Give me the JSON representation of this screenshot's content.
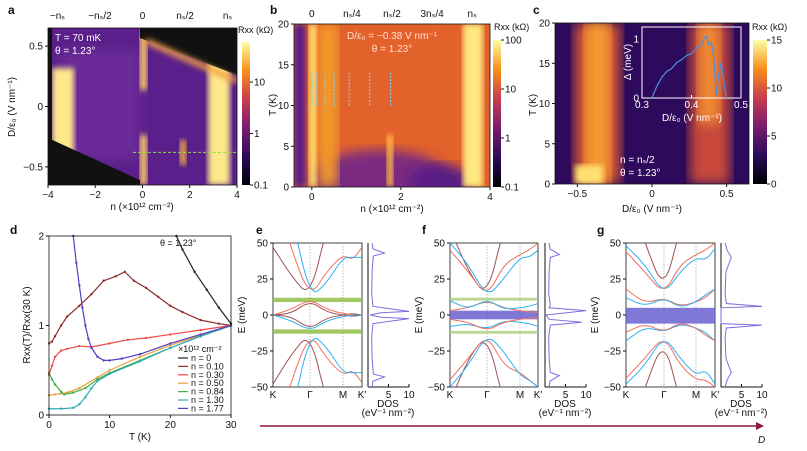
{
  "panels": {
    "a": "a",
    "b": "b",
    "c": "c",
    "d": "d",
    "e": "e",
    "f": "f",
    "g": "g"
  },
  "arrow_label": "D",
  "chart_data": [
    {
      "id": "a",
      "type": "heatmap",
      "xlabel": "n (×10¹² cm⁻²)",
      "ylabel": "D/ε₀ (V nm⁻¹)",
      "xlim": [
        -4,
        4
      ],
      "ylim": [
        -0.65,
        0.65
      ],
      "xticks": [
        -4,
        -2,
        0,
        2,
        4
      ],
      "yticks": [
        -0.5,
        0,
        0.5
      ],
      "top_ticks": [
        {
          "label": "−nₛ",
          "n": -3.6
        },
        {
          "label": "−nₛ/2",
          "n": -1.8
        },
        {
          "label": "0",
          "n": 0
        },
        {
          "label": "nₛ/2",
          "n": 1.8
        },
        {
          "label": "nₛ",
          "n": 3.6
        }
      ],
      "annotations": [
        "T = 70 mK",
        "θ = 1.23°"
      ],
      "colorbar": {
        "label": "Rxx (kΩ)",
        "scale": "log",
        "range": [
          0.1,
          60
        ],
        "ticks": [
          0.1,
          1,
          10
        ]
      },
      "cut_line": {
        "D": -0.38,
        "n_range": [
          -0.4,
          4
        ],
        "color": "#8fe33a"
      }
    },
    {
      "id": "b",
      "type": "heatmap",
      "xlabel": "n (×10¹² cm⁻²)",
      "ylabel": "T (K)",
      "xlim": [
        -0.4,
        4
      ],
      "ylim": [
        0,
        20
      ],
      "xticks": [
        0,
        2,
        4
      ],
      "yticks": [
        0,
        5,
        10,
        15,
        20
      ],
      "top_ticks": [
        {
          "label": "0",
          "n": 0
        },
        {
          "label": "nₛ/4",
          "n": 0.9
        },
        {
          "label": "nₛ/2",
          "n": 1.8
        },
        {
          "label": "3nₛ/4",
          "n": 2.7
        },
        {
          "label": "nₛ",
          "n": 3.6
        }
      ],
      "annotations": [
        "D/ε₀ = −0.38 V nm⁻¹",
        "θ = 1.23°"
      ],
      "colorbar": {
        "label": "Rxx (kΩ)",
        "scale": "log",
        "range": [
          0.1,
          100
        ],
        "ticks": [
          0.1,
          1,
          10,
          100
        ]
      },
      "marker_lines": {
        "n": [
          0,
          0.1,
          0.3,
          0.5,
          0.84,
          1.3,
          1.77
        ],
        "T_range": [
          10,
          14
        ],
        "color": "#6fd0ff"
      }
    },
    {
      "id": "c",
      "type": "heatmap",
      "xlabel": "D/ε₀ (V nm⁻¹)",
      "ylabel": "T (K)",
      "xlim": [
        -0.65,
        0.65
      ],
      "ylim": [
        0,
        20
      ],
      "xticks": [
        -0.5,
        0,
        0.5
      ],
      "yticks": [
        0,
        5,
        10,
        15,
        20
      ],
      "annotations": [
        "n = nₛ/2",
        "θ = 1.23°"
      ],
      "colorbar": {
        "label": "Rxx (kΩ)",
        "scale": "linear",
        "range": [
          0,
          15
        ],
        "ticks": [
          0,
          5,
          10,
          15
        ]
      },
      "inset": {
        "type": "line",
        "xlabel": "D/ε₀ (V nm⁻¹)",
        "ylabel": "Δ (meV)",
        "xlim": [
          0.3,
          0.5
        ],
        "ylim": [
          0,
          1.2
        ],
        "xticks": [
          0.3,
          0.4,
          0.5
        ],
        "yticks": [
          0,
          1
        ],
        "color": "#4a90e2",
        "x": [
          0.32,
          0.33,
          0.34,
          0.35,
          0.36,
          0.37,
          0.38,
          0.39,
          0.4,
          0.41,
          0.42,
          0.425,
          0.43,
          0.435,
          0.44,
          0.445,
          0.45,
          0.455,
          0.46,
          0.465,
          0.47
        ],
        "y": [
          0,
          0.2,
          0.35,
          0.45,
          0.5,
          0.6,
          0.65,
          0.72,
          0.75,
          0.85,
          0.9,
          1.0,
          1.05,
          0.9,
          0.95,
          0.7,
          0.05,
          0.4,
          0.6,
          0.3,
          0
        ]
      }
    },
    {
      "id": "d",
      "type": "line",
      "xlabel": "T (K)",
      "ylabel": "Rxx(T)/Rxx(30 K)",
      "xlim": [
        0,
        30
      ],
      "ylim": [
        0,
        2
      ],
      "xticks": [
        0,
        10,
        20,
        30
      ],
      "yticks": [
        0,
        1,
        2
      ],
      "annotation": "θ = 1.23°",
      "legend_title": "×10¹² cm⁻²",
      "legend": "bottom-right",
      "series": [
        {
          "name": "n = 0",
          "color": "#222222",
          "x": [
            21,
            22,
            24,
            26,
            28,
            30
          ],
          "y": [
            2,
            1.85,
            1.6,
            1.4,
            1.2,
            1.02
          ]
        },
        {
          "name": "n = 0.10",
          "color": "#8b2e2e",
          "x": [
            0,
            0.5,
            1,
            2,
            3,
            5,
            7,
            9,
            11,
            12.5,
            14,
            16,
            18,
            20,
            22,
            25,
            28,
            30
          ],
          "y": [
            0.8,
            0.82,
            0.88,
            1.0,
            1.1,
            1.22,
            1.35,
            1.5,
            1.55,
            1.6,
            1.5,
            1.42,
            1.32,
            1.22,
            1.15,
            1.06,
            1.02,
            1.0
          ]
        },
        {
          "name": "n = 0.30",
          "color": "#f04848",
          "x": [
            0,
            0.5,
            1,
            2,
            3,
            5,
            7,
            10,
            13,
            16,
            20,
            25,
            30
          ],
          "y": [
            0.45,
            0.55,
            0.65,
            0.72,
            0.74,
            0.77,
            0.76,
            0.8,
            0.84,
            0.86,
            0.9,
            0.95,
            1.0
          ]
        },
        {
          "name": "n = 0.50",
          "color": "#e8a040",
          "x": [
            0,
            1,
            2,
            3,
            5,
            8,
            10,
            15,
            20,
            25,
            30
          ],
          "y": [
            0.22,
            0.23,
            0.24,
            0.25,
            0.3,
            0.42,
            0.5,
            0.65,
            0.78,
            0.89,
            1.0
          ]
        },
        {
          "name": "n = 0.84",
          "color": "#40b040",
          "x": [
            0,
            0.5,
            1,
            2,
            2.5,
            4,
            6,
            8,
            10,
            15,
            20,
            25,
            30
          ],
          "y": [
            0.47,
            0.4,
            0.34,
            0.26,
            0.23,
            0.25,
            0.3,
            0.4,
            0.47,
            0.61,
            0.75,
            0.88,
            1.0
          ]
        },
        {
          "name": "n = 1.30",
          "color": "#30a8b8",
          "x": [
            0,
            2,
            4,
            5,
            6,
            7,
            8,
            10,
            15,
            20,
            25,
            30
          ],
          "y": [
            0.07,
            0.07,
            0.08,
            0.12,
            0.2,
            0.3,
            0.38,
            0.46,
            0.6,
            0.75,
            0.88,
            1.0
          ]
        },
        {
          "name": "n = 1.77",
          "color": "#5040c0",
          "x": [
            4,
            4.5,
            5,
            5.5,
            6,
            6.5,
            7,
            8,
            9,
            10,
            12,
            15,
            20,
            25,
            30
          ],
          "y": [
            2,
            1.7,
            1.45,
            1.2,
            1.0,
            0.85,
            0.75,
            0.65,
            0.61,
            0.61,
            0.63,
            0.68,
            0.8,
            0.9,
            1.0
          ]
        }
      ]
    },
    {
      "id": "e",
      "type": "line",
      "ylabel": "E (meV)",
      "ylim": [
        -50,
        50
      ],
      "yticks": [
        -50,
        -25,
        0,
        25,
        50
      ],
      "kpath": [
        "K",
        "Γ",
        "M",
        "K′"
      ],
      "dos": {
        "xlabel": "DOS",
        "xunit": "(eV⁻¹ nm⁻²)",
        "xticks": [
          5,
          10
        ],
        "xlim": [
          0,
          10
        ],
        "E": [
          -50,
          -46,
          -43,
          -41,
          -30,
          -15,
          -6,
          -2.5,
          -1.5,
          0,
          1.5,
          2.5,
          6,
          15,
          30,
          41,
          43,
          46,
          50
        ],
        "dos": [
          1,
          1.2,
          4,
          1.3,
          1,
          0.9,
          1.2,
          10,
          3,
          0.5,
          3,
          10,
          1.2,
          0.9,
          1,
          1.3,
          4,
          1.2,
          1
        ]
      },
      "gap_bands": [
        {
          "E": [
            9,
            12
          ],
          "color": "#8fbf4a"
        },
        {
          "E": [
            -13,
            -10
          ],
          "color": "#8fbf4a"
        }
      ],
      "bands": [
        {
          "color": "#a05050",
          "E": [
            47,
            27,
            12,
            60,
            90,
            90,
            90
          ]
        },
        {
          "color": "#a05050",
          "E": [
            -48,
            -27,
            -12,
            -60,
            -90,
            -90,
            -90
          ]
        },
        {
          "color": "#a05050",
          "E": [
            0,
            1,
            10,
            2,
            0,
            -1,
            0
          ]
        },
        {
          "color": "#a05050",
          "E": [
            0,
            -1,
            -10,
            -2,
            0,
            1,
            0
          ]
        },
        {
          "color": "#f07060",
          "E": [
            90,
            45,
            12,
            30,
            42,
            38,
            47
          ]
        },
        {
          "color": "#f07060",
          "E": [
            -90,
            -45,
            -12,
            -30,
            -42,
            -38,
            -47
          ]
        },
        {
          "color": "#30b0f0",
          "E": [
            90,
            70,
            12,
            22,
            40,
            40,
            40
          ]
        },
        {
          "color": "#30b0f0",
          "E": [
            -90,
            -70,
            -12,
            -22,
            -40,
            -40,
            -40
          ]
        },
        {
          "color": "#f07060",
          "E": [
            0,
            4,
            11,
            4,
            1,
            0,
            0
          ]
        },
        {
          "color": "#30b0f0",
          "E": [
            0,
            -4,
            -11,
            -4,
            -1,
            0,
            0
          ]
        }
      ]
    },
    {
      "id": "f",
      "type": "line",
      "ylabel": "E (meV)",
      "ylim": [
        -50,
        50
      ],
      "yticks": [
        -50,
        -25,
        0,
        25,
        50
      ],
      "kpath": [
        "K",
        "Γ",
        "M",
        "K′"
      ],
      "dos": {
        "xlabel": "DOS",
        "xunit": "(eV⁻¹ nm⁻²)",
        "xticks": [
          5,
          10
        ],
        "xlim": [
          0,
          10
        ],
        "E": [
          -50,
          -46,
          -42,
          -40,
          -30,
          -15,
          -7,
          -5,
          -3,
          0,
          3,
          5,
          7,
          15,
          30,
          40,
          42,
          46,
          50
        ],
        "dos": [
          1,
          1.2,
          3.5,
          1.3,
          1,
          0.9,
          1.3,
          9,
          1,
          0.3,
          10,
          1,
          1.3,
          0.9,
          1,
          1.3,
          3.5,
          1.2,
          1
        ]
      },
      "gap_bands": [
        {
          "E": [
            10,
            12
          ],
          "color": "#b0d080"
        },
        {
          "E": [
            -13,
            -11
          ],
          "color": "#b0d080"
        },
        {
          "E": [
            -3,
            3
          ],
          "color": "#6a60d0"
        }
      ],
      "bands": [
        {
          "color": "#a05050",
          "E": [
            60,
            30,
            12,
            60,
            90,
            90,
            90
          ]
        },
        {
          "color": "#a05050",
          "E": [
            -60,
            -30,
            -13,
            -60,
            -90,
            -90,
            -90
          ]
        },
        {
          "color": "#f07060",
          "E": [
            45,
            30,
            12,
            35,
            42,
            45,
            50
          ]
        },
        {
          "color": "#f07060",
          "E": [
            -45,
            -30,
            -13,
            -35,
            -40,
            -45,
            -50
          ]
        },
        {
          "color": "#30b0f0",
          "E": [
            50,
            35,
            12,
            25,
            40,
            40,
            45
          ]
        },
        {
          "color": "#30b0f0",
          "E": [
            -50,
            -35,
            -13,
            -25,
            -42,
            -45,
            -50
          ]
        },
        {
          "color": "#f07060",
          "E": [
            3,
            5,
            10,
            5,
            3,
            2,
            2
          ]
        },
        {
          "color": "#30b0f0",
          "E": [
            -8,
            -6,
            -10,
            -4,
            -5,
            -6,
            -8
          ]
        },
        {
          "color": "#30b0f0",
          "E": [
            10,
            4,
            11,
            4,
            5,
            6,
            8
          ]
        },
        {
          "color": "#f07060",
          "E": [
            -3,
            -5,
            -11,
            -5,
            -3,
            -2,
            -2
          ]
        }
      ]
    },
    {
      "id": "g",
      "type": "line",
      "ylabel": "E (meV)",
      "ylim": [
        -50,
        50
      ],
      "yticks": [
        -50,
        -25,
        0,
        25,
        50
      ],
      "kpath": [
        "K",
        "Γ",
        "M",
        "K′"
      ],
      "dos": {
        "xlabel": "DOS",
        "xunit": "(eV⁻¹ nm⁻²)",
        "xticks": [
          5,
          10
        ],
        "xlim": [
          0,
          10
        ],
        "E": [
          -50,
          -45,
          -40,
          -30,
          -15,
          -9,
          -7,
          -6,
          0,
          5,
          6,
          8,
          15,
          30,
          40,
          45,
          50
        ],
        "dos": [
          1,
          1.5,
          2.5,
          1.2,
          1,
          1.3,
          10,
          0,
          0,
          0,
          10,
          1.3,
          1,
          1.2,
          2.5,
          1.5,
          1
        ]
      },
      "gap_bands": [
        {
          "E": [
            -6,
            5
          ],
          "color": "#6a60d0"
        }
      ],
      "bands": [
        {
          "color": "#a05050",
          "E": [
            90,
            50,
            16,
            60,
            90,
            90,
            90
          ]
        },
        {
          "color": "#a05050",
          "E": [
            -90,
            -50,
            -16,
            -60,
            -90,
            -90,
            -90
          ]
        },
        {
          "color": "#f07060",
          "E": [
            44,
            30,
            14,
            35,
            42,
            45,
            50
          ]
        },
        {
          "color": "#f07060",
          "E": [
            -44,
            -30,
            -14,
            -35,
            -45,
            -45,
            -50
          ]
        },
        {
          "color": "#30b0f0",
          "E": [
            48,
            35,
            14,
            30,
            40,
            38,
            46
          ]
        },
        {
          "color": "#30b0f0",
          "E": [
            -48,
            -35,
            -14,
            -30,
            -42,
            -38,
            -48
          ]
        },
        {
          "color": "#f07060",
          "E": [
            18,
            8,
            12,
            6,
            9,
            12,
            18
          ]
        },
        {
          "color": "#30b0f0",
          "E": [
            -18,
            -8,
            -12,
            -6,
            -9,
            -12,
            -18
          ]
        },
        {
          "color": "#30b0f0",
          "E": [
            12,
            6,
            12,
            5,
            9,
            14,
            18
          ]
        },
        {
          "color": "#f07060",
          "E": [
            -12,
            -6,
            -12,
            -5,
            -9,
            -14,
            -18
          ]
        }
      ]
    }
  ],
  "colors": {
    "arrow": "#8b1a3a"
  }
}
